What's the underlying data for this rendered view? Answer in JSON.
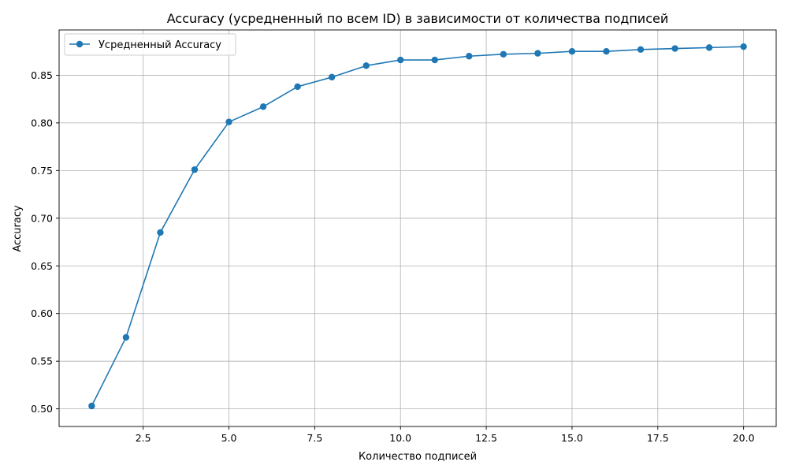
{
  "chart_data": {
    "type": "line",
    "title": "Accuracy (усредненный по всем ID) в зависимости от количества подписей",
    "xlabel": "Количество подписей",
    "ylabel": "Accuracy",
    "xlim": [
      0.05,
      20.95
    ],
    "ylim": [
      0.4815,
      0.8975
    ],
    "x_ticks": [
      2.5,
      5.0,
      7.5,
      10.0,
      12.5,
      15.0,
      17.5,
      20.0
    ],
    "x_tick_labels": [
      "2.5",
      "5.0",
      "7.5",
      "10.0",
      "12.5",
      "15.0",
      "17.5",
      "20.0"
    ],
    "y_ticks": [
      0.5,
      0.55,
      0.6,
      0.65,
      0.7,
      0.75,
      0.8,
      0.85
    ],
    "y_tick_labels": [
      "0.50",
      "0.55",
      "0.60",
      "0.65",
      "0.70",
      "0.75",
      "0.80",
      "0.85"
    ],
    "grid": true,
    "legend_position": "top-left",
    "series": [
      {
        "name": "Усредненный Accuracy",
        "color": "#1f77b4",
        "marker": "circle",
        "x": [
          1,
          2,
          3,
          4,
          5,
          6,
          7,
          8,
          9,
          10,
          11,
          12,
          13,
          14,
          15,
          16,
          17,
          18,
          19,
          20
        ],
        "values": [
          0.503,
          0.575,
          0.685,
          0.751,
          0.801,
          0.817,
          0.838,
          0.848,
          0.86,
          0.866,
          0.866,
          0.87,
          0.872,
          0.873,
          0.875,
          0.875,
          0.877,
          0.878,
          0.879,
          0.88
        ]
      }
    ]
  }
}
